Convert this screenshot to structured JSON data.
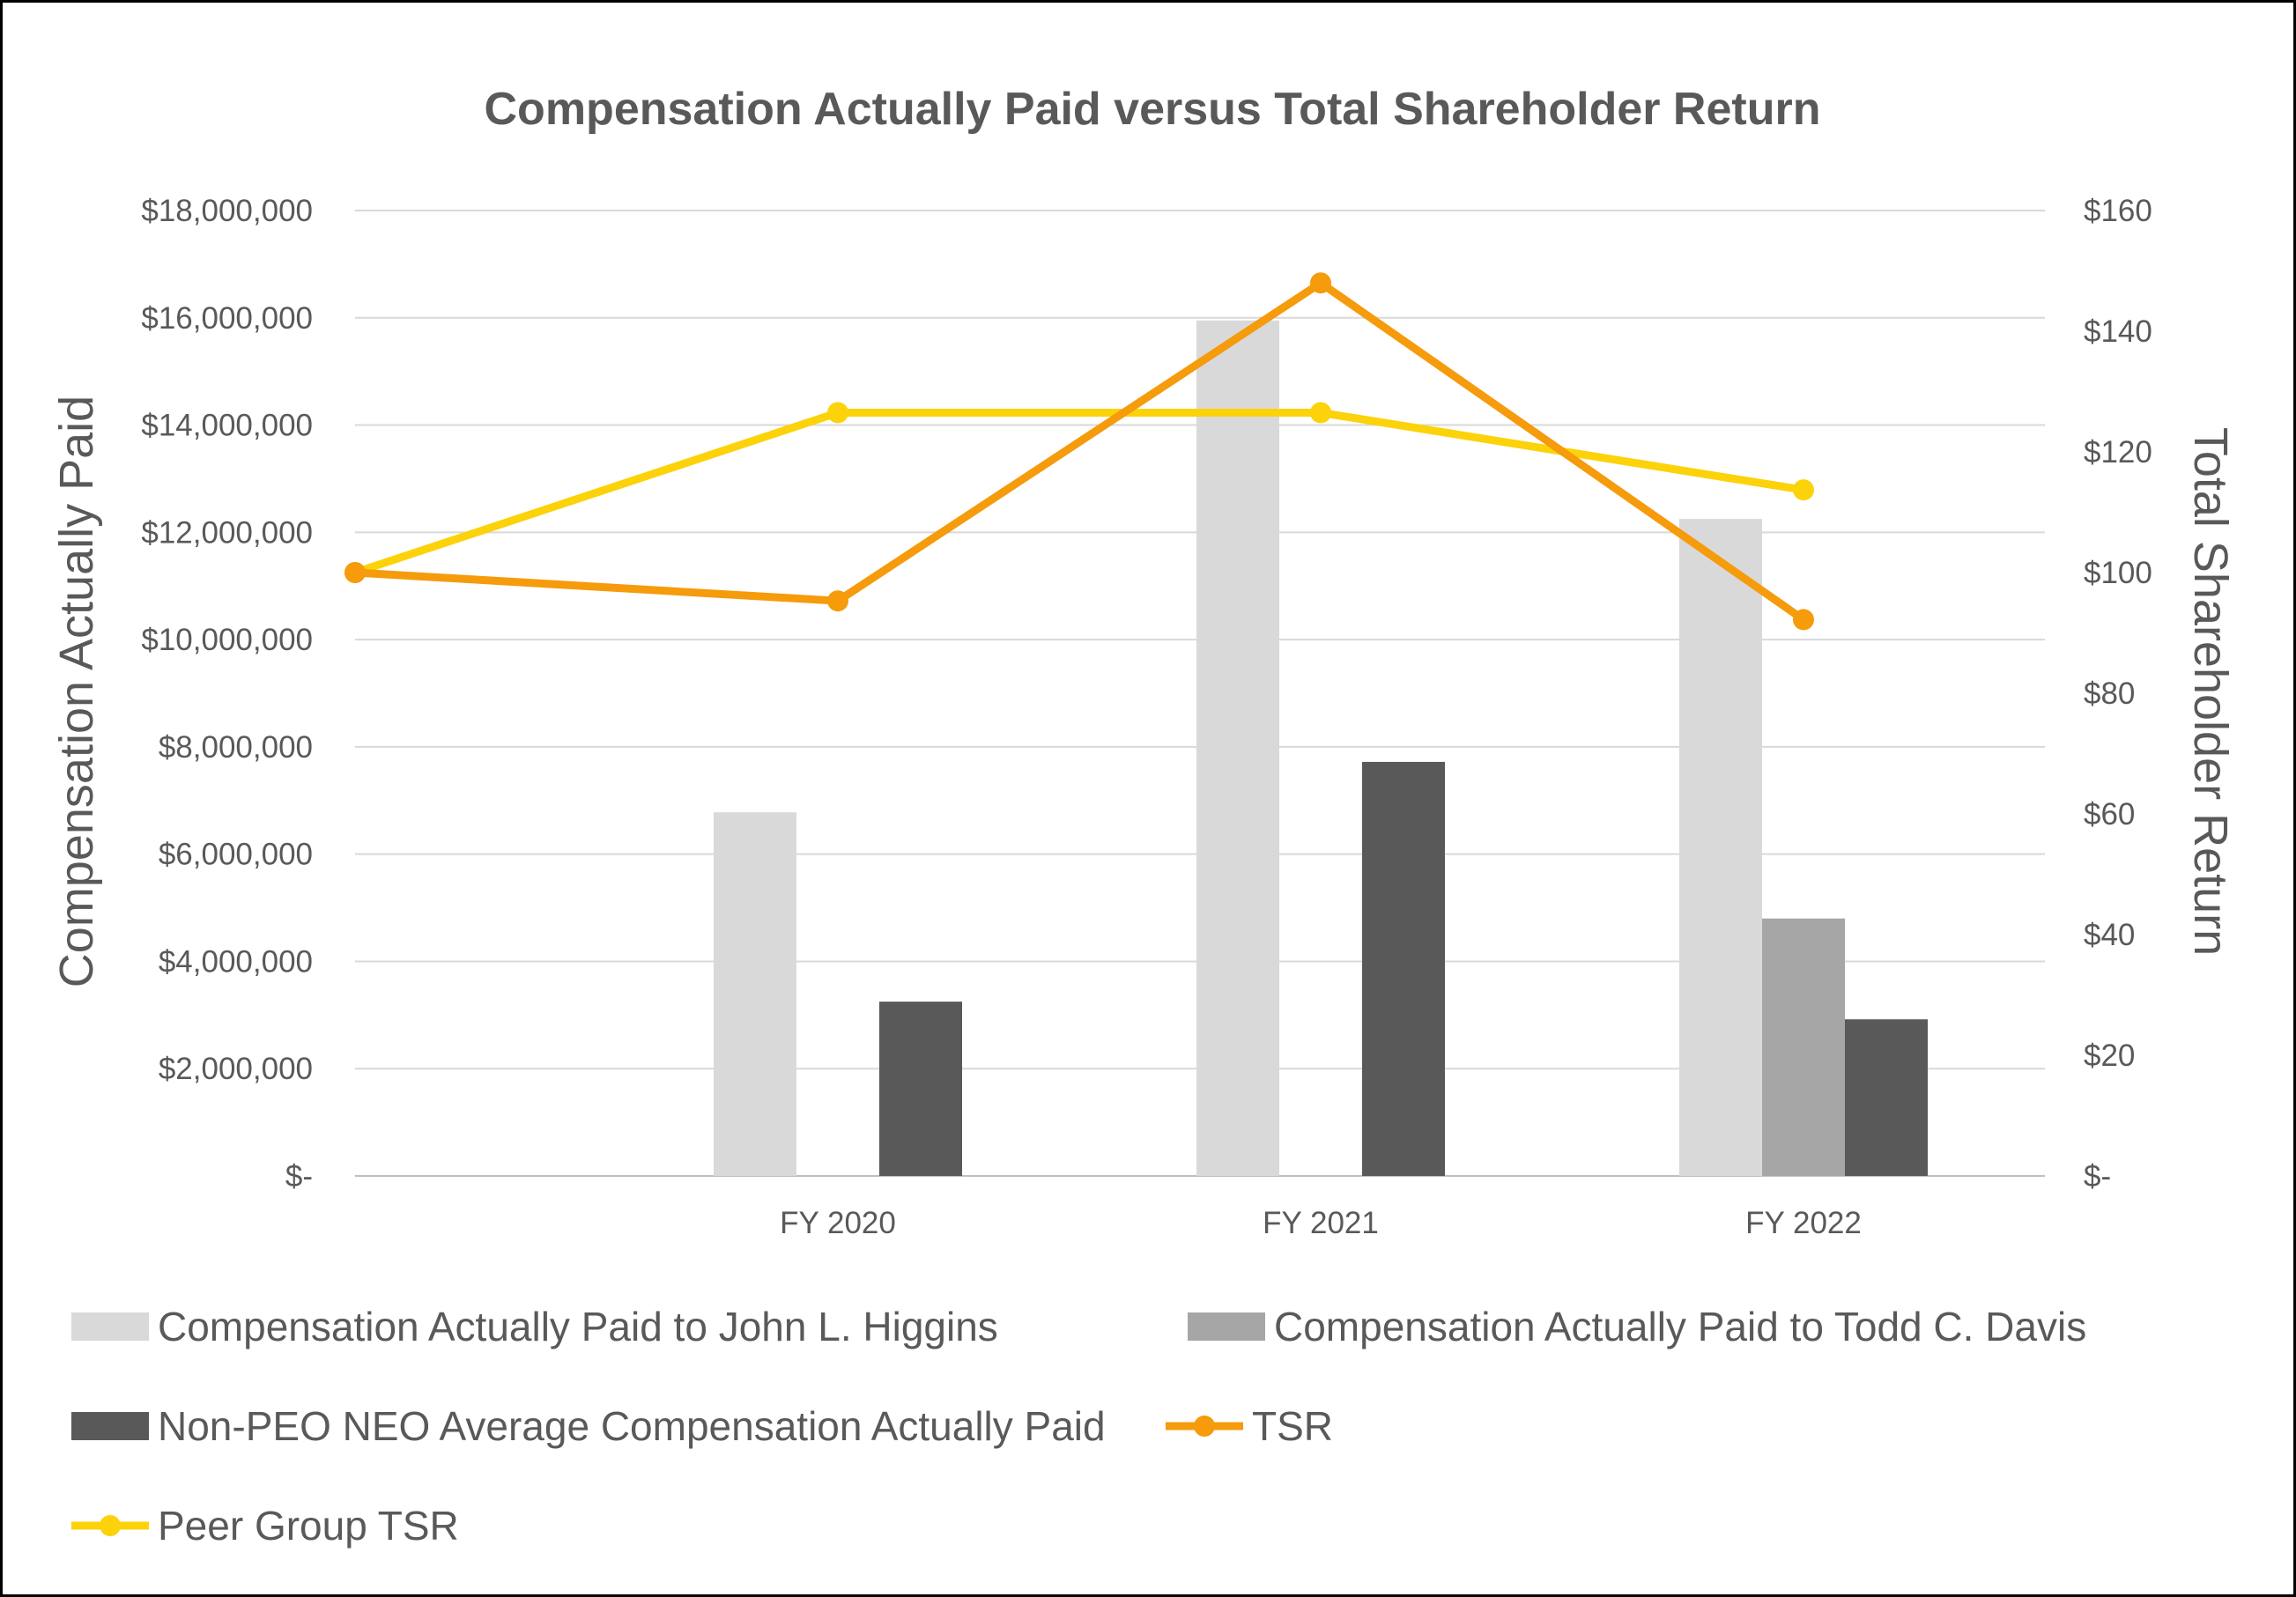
{
  "chart_data": {
    "type": "bar",
    "title": "Compensation Actually Paid versus Total Shareholder Return",
    "categories": [
      "FY 2020",
      "FY 2021",
      "FY 2022"
    ],
    "y_left": {
      "label": "Compensation Actually Paid",
      "range": [
        0,
        18000000
      ],
      "ticks": [
        {
          "value": 0,
          "label": "$-"
        },
        {
          "value": 2000000,
          "label": "$2,000,000"
        },
        {
          "value": 4000000,
          "label": "$4,000,000"
        },
        {
          "value": 6000000,
          "label": "$6,000,000"
        },
        {
          "value": 8000000,
          "label": "$8,000,000"
        },
        {
          "value": 10000000,
          "label": "$10,000,000"
        },
        {
          "value": 12000000,
          "label": "$12,000,000"
        },
        {
          "value": 14000000,
          "label": "$14,000,000"
        },
        {
          "value": 16000000,
          "label": "$16,000,000"
        },
        {
          "value": 18000000,
          "label": "$18,000,000"
        }
      ]
    },
    "y_right": {
      "label": "Total Shareholder Return",
      "range": [
        0,
        160
      ],
      "ticks": [
        {
          "value": 0,
          "label": "$-"
        },
        {
          "value": 20,
          "label": "$20"
        },
        {
          "value": 40,
          "label": "$40"
        },
        {
          "value": 60,
          "label": "$60"
        },
        {
          "value": 80,
          "label": "$80"
        },
        {
          "value": 100,
          "label": "$100"
        },
        {
          "value": 120,
          "label": "$120"
        },
        {
          "value": 140,
          "label": "$140"
        },
        {
          "value": 160,
          "label": "$160"
        }
      ]
    },
    "grid": true,
    "legend_position": "bottom",
    "bar_series": [
      {
        "name": "Compensation Actually Paid to John L. Higgins",
        "color": "#d9d9d9",
        "values": [
          6780000,
          15950000,
          12250000
        ]
      },
      {
        "name": "Compensation Actually Paid to Todd C. Davis",
        "color": "#a6a6a6",
        "values": [
          null,
          null,
          4800000
        ]
      },
      {
        "name": "Non-PEO NEO Average Compensation Actually Paid",
        "color": "#595959",
        "values": [
          3250000,
          7720000,
          2920000
        ]
      }
    ],
    "line_series": [
      {
        "name": "TSR",
        "color": "#f59b0c",
        "axis": "right",
        "x": [
          "start",
          "FY 2020",
          "FY 2021",
          "FY 2022"
        ],
        "values": [
          100,
          95.3,
          148,
          92.2
        ]
      },
      {
        "name": "Peer Group TSR",
        "color": "#fcd20a",
        "axis": "right",
        "x": [
          "start",
          "FY 2020",
          "FY 2021",
          "FY 2022"
        ],
        "values": [
          100,
          126.5,
          126.5,
          113.7
        ]
      }
    ]
  }
}
